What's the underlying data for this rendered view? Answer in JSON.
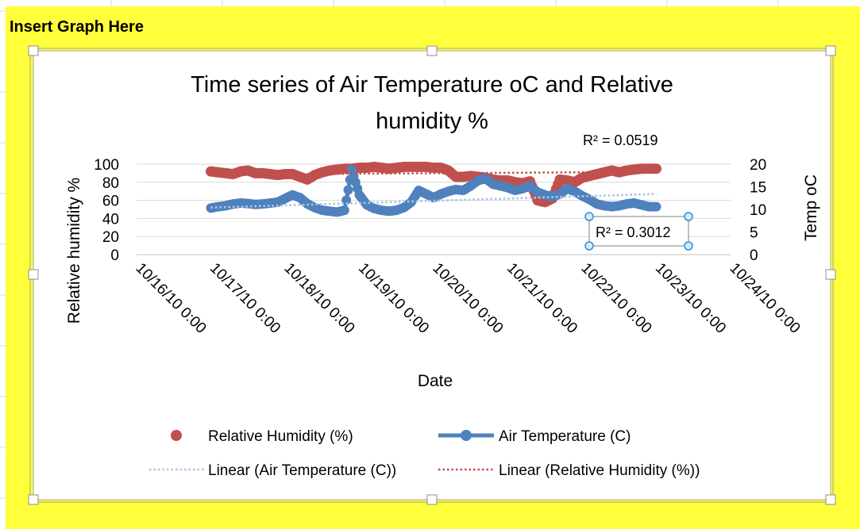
{
  "sheet": {
    "header_label": "Insert Graph Here",
    "highlight_color": "#ffff3b"
  },
  "chart_data": {
    "type": "scatter",
    "title_line1": "Time series of Air Temperature oC and Relative",
    "title_line2": "humidity %",
    "xlabel": "Date",
    "ylabel_left": "Relative humidity %",
    "ylabel_right": "Temp oC",
    "x_ticks": [
      "10/16/10 0:00",
      "10/17/10 0:00",
      "10/18/10 0:00",
      "10/19/10 0:00",
      "10/20/10 0:00",
      "10/21/10 0:00",
      "10/22/10 0:00",
      "10/23/10 0:00",
      "10/24/10 0:00"
    ],
    "xlim": [
      0,
      8
    ],
    "y_left": {
      "lim": [
        0,
        100
      ],
      "ticks": [
        0,
        20,
        40,
        60,
        80,
        100
      ]
    },
    "y_right": {
      "lim": [
        0,
        20
      ],
      "ticks": [
        0,
        5,
        10,
        15,
        20
      ]
    },
    "grid": "horizontal",
    "series": [
      {
        "name": "Relative Humidity (%)",
        "axis": "left",
        "color": "#c0504d",
        "marker": "circle",
        "x": [
          1.0,
          1.1,
          1.2,
          1.3,
          1.4,
          1.5,
          1.6,
          1.7,
          1.8,
          1.9,
          2.0,
          2.1,
          2.2,
          2.3,
          2.4,
          2.5,
          2.6,
          2.7,
          2.8,
          2.9,
          3.0,
          3.1,
          3.2,
          3.3,
          3.4,
          3.5,
          3.6,
          3.7,
          3.8,
          3.9,
          4.0,
          4.1,
          4.2,
          4.3,
          4.4,
          4.5,
          4.6,
          4.7,
          4.8,
          4.9,
          5.0,
          5.1,
          5.2,
          5.3,
          5.4,
          5.5,
          5.6,
          5.7,
          5.8,
          5.9,
          6.0,
          6.1,
          6.2,
          6.3,
          6.4,
          6.5,
          6.6,
          6.7,
          6.8,
          6.9,
          7.0
        ],
        "values": [
          92,
          91,
          90,
          89,
          92,
          93,
          90,
          90,
          89,
          88,
          89,
          89,
          86,
          83,
          88,
          91,
          93,
          94,
          95,
          95,
          96,
          96,
          97,
          96,
          95,
          96,
          97,
          97,
          97,
          97,
          96,
          96,
          93,
          86,
          86,
          87,
          86,
          85,
          83,
          82,
          82,
          80,
          79,
          81,
          60,
          58,
          62,
          83,
          82,
          80,
          85,
          87,
          89,
          91,
          93,
          91,
          93,
          94,
          95,
          95,
          95
        ]
      },
      {
        "name": "Air Temperature (C)",
        "axis": "right",
        "color": "#4f81bd",
        "marker": "circle-line",
        "x": [
          1.0,
          1.1,
          1.2,
          1.3,
          1.4,
          1.5,
          1.6,
          1.7,
          1.8,
          1.9,
          2.0,
          2.1,
          2.2,
          2.3,
          2.4,
          2.5,
          2.6,
          2.7,
          2.8,
          2.9,
          3.0,
          3.1,
          3.2,
          3.3,
          3.4,
          3.5,
          3.6,
          3.7,
          3.8,
          3.9,
          4.0,
          4.1,
          4.2,
          4.3,
          4.4,
          4.5,
          4.6,
          4.7,
          4.8,
          4.9,
          5.0,
          5.1,
          5.2,
          5.3,
          5.4,
          5.5,
          5.6,
          5.7,
          5.8,
          5.9,
          6.0,
          6.1,
          6.2,
          6.3,
          6.4,
          6.5,
          6.6,
          6.7,
          6.8,
          6.9,
          7.0
        ],
        "values": [
          10.3,
          10.6,
          10.8,
          11.2,
          11.4,
          11.3,
          11.1,
          11.2,
          11.4,
          11.6,
          12.4,
          13.2,
          12.6,
          11.2,
          10.4,
          9.8,
          9.6,
          9.4,
          9.8,
          18.8,
          13.2,
          11.0,
          10.2,
          9.8,
          9.6,
          9.8,
          10.4,
          11.6,
          14.2,
          13.4,
          12.6,
          13.4,
          14.0,
          14.4,
          14.2,
          15.2,
          16.4,
          16.8,
          15.6,
          15.2,
          14.8,
          14.2,
          14.6,
          15.2,
          13.8,
          13.2,
          12.8,
          13.4,
          14.6,
          14.0,
          13.0,
          12.2,
          11.2,
          10.8,
          10.6,
          10.8,
          11.2,
          11.4,
          11.0,
          10.6,
          10.6
        ]
      }
    ],
    "legend": {
      "placement": "bottom",
      "entries": [
        "Relative Humidity (%)",
        "Air Temperature (C)",
        "Linear (Air Temperature (C))",
        "Linear (Relative Humidity (%))"
      ]
    },
    "trendlines": [
      {
        "name": "Linear (Air Temperature (C))",
        "axis": "right",
        "color": "#a9c6e8",
        "style": "dotted",
        "from": [
          1.0,
          10.4
        ],
        "to": [
          7.0,
          13.4
        ]
      },
      {
        "name": "Linear (Relative Humidity (%))",
        "axis": "left",
        "color": "#c0504d",
        "style": "dotted",
        "from": [
          1.0,
          88.5
        ],
        "to": [
          7.0,
          91.5
        ]
      }
    ],
    "annotations": [
      {
        "text": "R² = 0.0519",
        "ref": "Relative Humidity (%)"
      },
      {
        "text": "R² = 0.3012",
        "ref": "Air Temperature (C)",
        "selected": true
      }
    ]
  }
}
